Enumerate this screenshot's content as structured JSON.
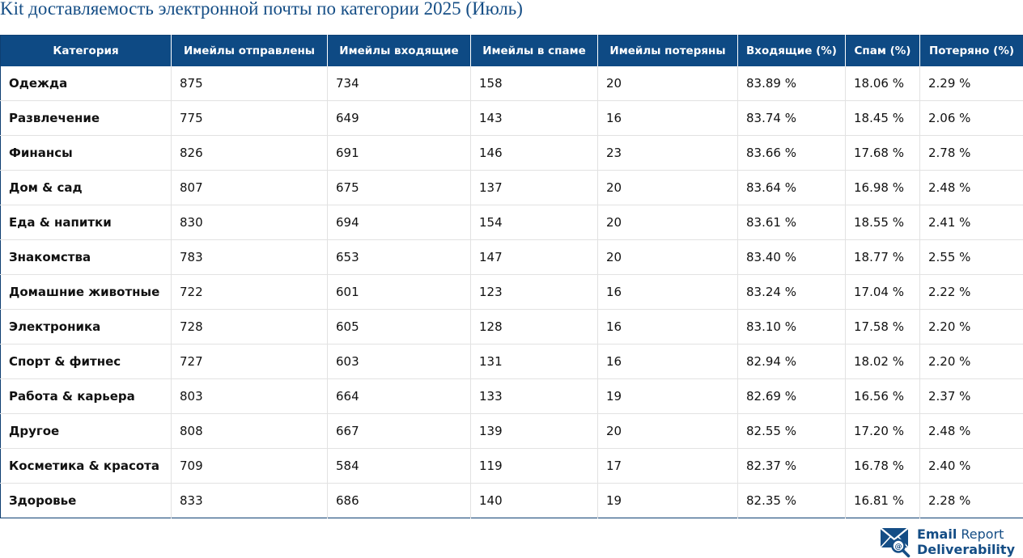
{
  "title": "Kit доставляемость электронной почты по категории 2025 (Июль)",
  "columns": [
    "Категория",
    "Имейлы отправлены",
    "Имейлы входящие",
    "Имейлы в спаме",
    "Имейлы потеряны",
    "Входящие (%)",
    "Спам (%)",
    "Потеряно (%)"
  ],
  "rows": [
    [
      "Одежда",
      "875",
      "734",
      "158",
      "20",
      "83.89 %",
      "18.06 %",
      "2.29 %"
    ],
    [
      "Развлечение",
      "775",
      "649",
      "143",
      "16",
      "83.74 %",
      "18.45 %",
      "2.06 %"
    ],
    [
      "Финансы",
      "826",
      "691",
      "146",
      "23",
      "83.66 %",
      "17.68 %",
      "2.78 %"
    ],
    [
      "Дом & сад",
      "807",
      "675",
      "137",
      "20",
      "83.64 %",
      "16.98 %",
      "2.48 %"
    ],
    [
      "Еда & напитки",
      "830",
      "694",
      "154",
      "20",
      "83.61 %",
      "18.55 %",
      "2.41 %"
    ],
    [
      "Знакомства",
      "783",
      "653",
      "147",
      "20",
      "83.40 %",
      "18.77 %",
      "2.55 %"
    ],
    [
      "Домашние животные",
      "722",
      "601",
      "123",
      "16",
      "83.24 %",
      "17.04 %",
      "2.22 %"
    ],
    [
      "Электроника",
      "728",
      "605",
      "128",
      "16",
      "83.10 %",
      "17.58 %",
      "2.20 %"
    ],
    [
      "Спорт & фитнес",
      "727",
      "603",
      "131",
      "16",
      "82.94 %",
      "18.02 %",
      "2.20 %"
    ],
    [
      "Работа & карьера",
      "803",
      "664",
      "133",
      "19",
      "82.69 %",
      "16.56 %",
      "2.37 %"
    ],
    [
      "Другое",
      "808",
      "667",
      "139",
      "20",
      "82.55 %",
      "17.20 %",
      "2.48 %"
    ],
    [
      "Косметика & красота",
      "709",
      "584",
      "119",
      "17",
      "82.37 %",
      "16.78 %",
      "2.40 %"
    ],
    [
      "Здоровье",
      "833",
      "686",
      "140",
      "19",
      "82.35 %",
      "16.81 %",
      "2.28 %"
    ]
  ],
  "brand": {
    "line1_bold": "Email",
    "line1_rest": "Report",
    "line2": "Deliverability",
    "icon": "envelope-at-magnifier-icon",
    "color": "#144d85"
  },
  "colors": {
    "header_bg": "#0e4a84",
    "title": "#144d85"
  }
}
